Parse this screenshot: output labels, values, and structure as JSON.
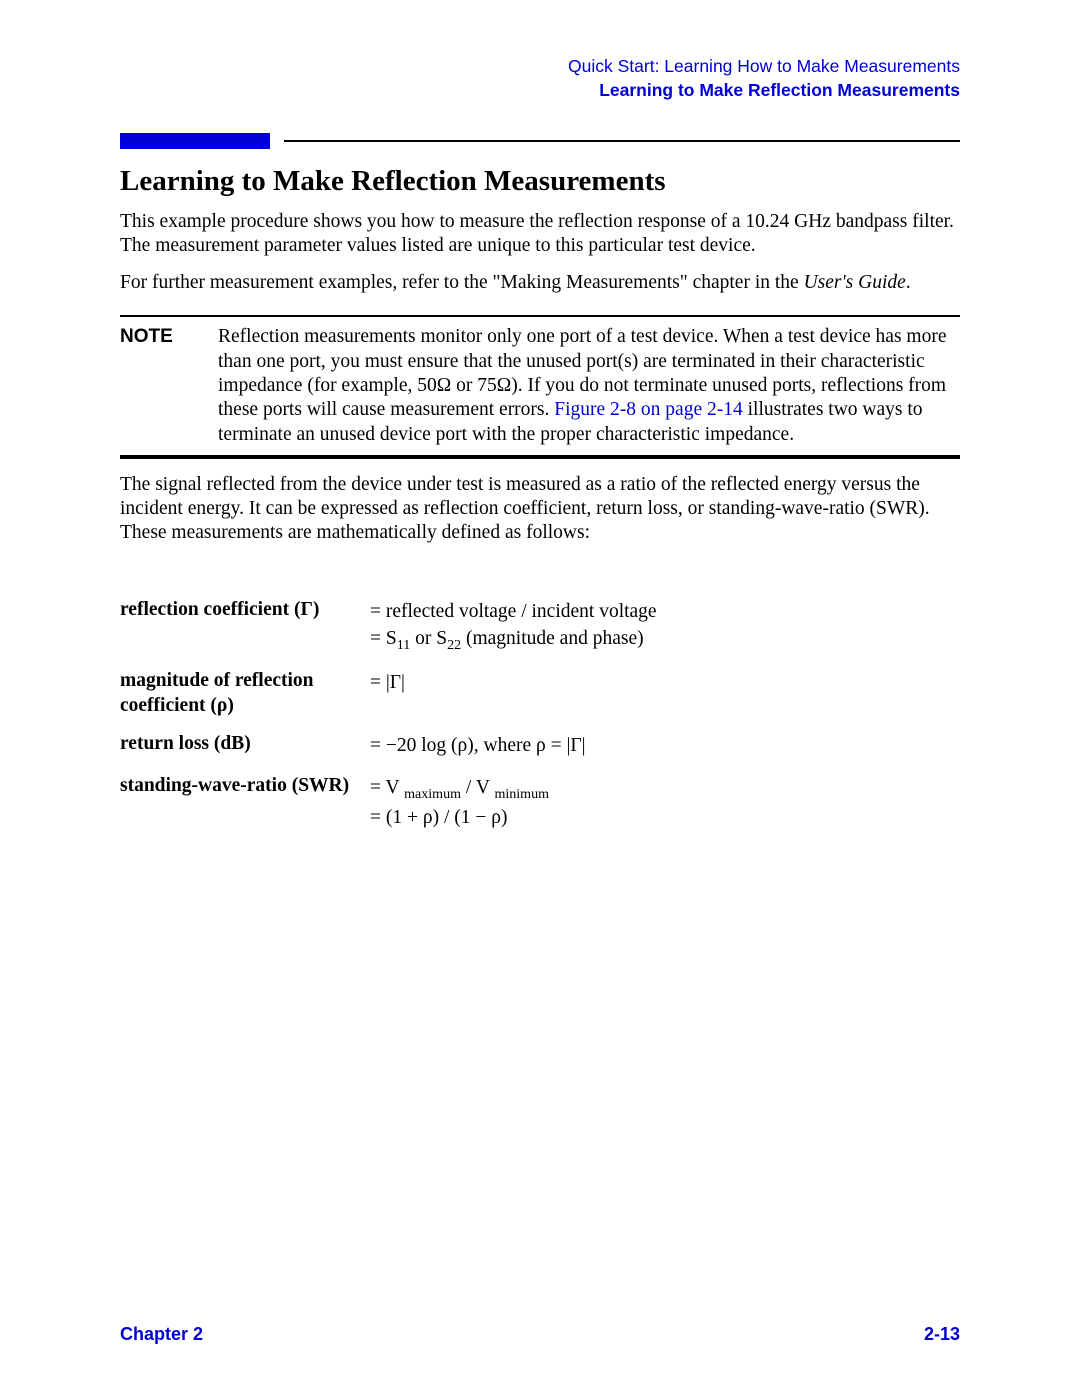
{
  "header": {
    "chapter_path": "Quick Start: Learning How to Make Measurements",
    "section_title": "Learning to Make Reflection Measurements"
  },
  "accent_color": "#0000d6",
  "title": "Learning to Make Reflection Measurements",
  "paragraphs": {
    "intro1": "This example procedure shows you how to measure the reflection response of a 10.24 GHz bandpass filter. The measurement parameter values listed are unique to this particular test device.",
    "intro2_prefix": "For further measurement examples, refer to the \"Making Measurements\" chapter in the ",
    "intro2_italic": "User's Guide",
    "intro2_suffix": "."
  },
  "note": {
    "label": "NOTE",
    "text_before_link": "Reflection measurements monitor only one port of a test device. When a test device has more than one port, you must ensure that the unused port(s) are terminated in their characteristic impedance (for example, 50Ω or 75Ω). If you do not terminate unused ports, reflections from these ports will cause measurement errors. ",
    "link_text": "Figure 2-8 on page 2-14",
    "text_after_link": " illustrates two ways to terminate an unused device port with the proper characteristic impedance."
  },
  "after_note": "The signal reflected from the device under test is measured as a ratio of the reflected energy versus the incident energy. It can be expressed as reflection coefficient, return loss, or standing-wave-ratio (SWR). These measurements are mathematically defined as follows:",
  "definitions": [
    {
      "term_html": "reflection coefficient (Γ)",
      "def_html": "= reflected voltage / incident voltage<br>= S<sub>11</sub> or S<sub>22</sub> (magnitude and phase)"
    },
    {
      "term_html": "magnitude of reflection coefficient (ρ)",
      "def_html": "=  |Γ|"
    },
    {
      "term_html": "return loss (dB)",
      "def_html": "= −20 log (ρ), where  ρ =  |Γ|"
    },
    {
      "term_html": "standing-wave-ratio (SWR)",
      "def_html": "= V <sub>maximum</sub> / V <sub>minimum</sub><br>= (1 + ρ) / (1 − ρ)"
    }
  ],
  "footer": {
    "left": "Chapter 2",
    "right": "2-13"
  }
}
